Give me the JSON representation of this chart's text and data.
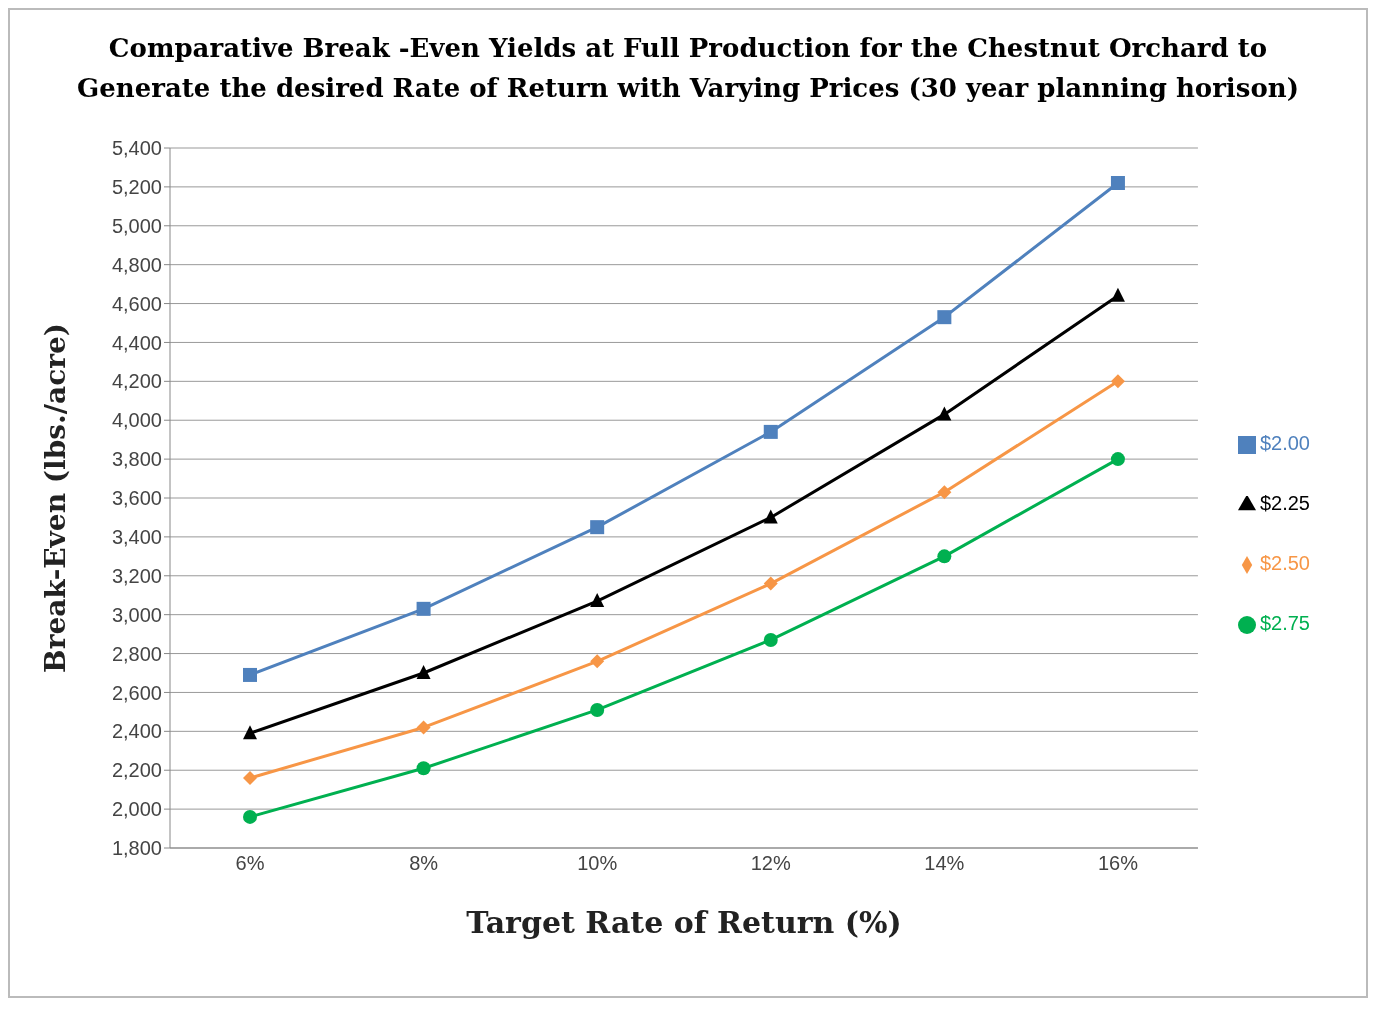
{
  "chart_data": {
    "type": "line",
    "title": "Comparative Break -Even Yields at Full Production for the Chestnut Orchard to Generate the desired Rate of Return with Varying Prices (30 year planning horison)",
    "xlabel": "Target Rate of Return (%)",
    "ylabel": "Break-Even (lbs./acre)",
    "categories": [
      "6%",
      "8%",
      "10%",
      "12%",
      "14%",
      "16%"
    ],
    "series": [
      {
        "name": "$2.00",
        "color": "#4f81bd",
        "marker": "square",
        "values": [
          2690,
          3030,
          3450,
          3940,
          4530,
          5220
        ]
      },
      {
        "name": "$2.25",
        "color": "#000000",
        "marker": "triangle",
        "values": [
          2390,
          2700,
          3070,
          3500,
          4030,
          4640
        ]
      },
      {
        "name": "$2.50",
        "color": "#f79646",
        "marker": "diamond",
        "values": [
          2160,
          2420,
          2760,
          3160,
          3630,
          4200
        ]
      },
      {
        "name": "$2.75",
        "color": "#00b050",
        "marker": "circle",
        "values": [
          1960,
          2210,
          2510,
          2870,
          3300,
          3800
        ]
      }
    ],
    "ylim": [
      1800,
      5400
    ],
    "yticks": [
      {
        "value": 1800,
        "label": "1,800"
      },
      {
        "value": 2000,
        "label": "2,000"
      },
      {
        "value": 2200,
        "label": "2,200"
      },
      {
        "value": 2400,
        "label": "2,400"
      },
      {
        "value": 2600,
        "label": "2,600"
      },
      {
        "value": 2800,
        "label": "2,800"
      },
      {
        "value": 3000,
        "label": "3,000"
      },
      {
        "value": 3200,
        "label": "3,200"
      },
      {
        "value": 3400,
        "label": "3,400"
      },
      {
        "value": 3600,
        "label": "3,600"
      },
      {
        "value": 3800,
        "label": "3,800"
      },
      {
        "value": 4000,
        "label": "4,000"
      },
      {
        "value": 4200,
        "label": "4,200"
      },
      {
        "value": 4400,
        "label": "4,400"
      },
      {
        "value": 4600,
        "label": "4,600"
      },
      {
        "value": 4800,
        "label": "4,800"
      },
      {
        "value": 5000,
        "label": "5,000"
      },
      {
        "value": 5200,
        "label": "5,200"
      },
      {
        "value": 5400,
        "label": "5,400"
      }
    ],
    "grid": "y",
    "legend": "right",
    "line_style": "solid"
  }
}
